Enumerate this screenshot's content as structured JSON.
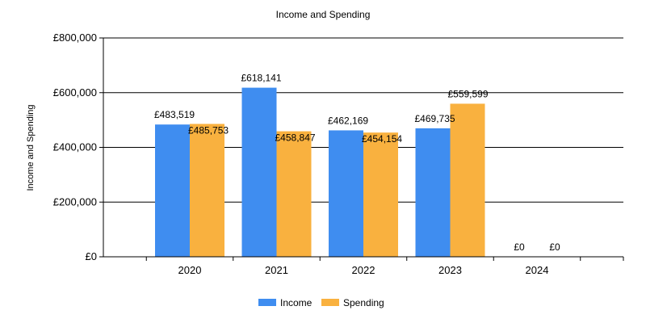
{
  "chart_data": {
    "type": "bar",
    "title": "Income and Spending",
    "xlabel": "",
    "ylabel": "Income and Spending",
    "categories": [
      "2020",
      "2021",
      "2022",
      "2023",
      "2024"
    ],
    "series": [
      {
        "name": "Income",
        "color": "#3f8df0",
        "values": [
          483519,
          618141,
          462169,
          469735,
          0
        ],
        "labels": [
          "£483,519",
          "£618,141",
          "£462,169",
          "£469,735",
          "£0"
        ]
      },
      {
        "name": "Spending",
        "color": "#f9b13f",
        "values": [
          485753,
          458847,
          454154,
          559599,
          0
        ],
        "labels": [
          "£485,753",
          "£458,847",
          "£454,154",
          "£559,599",
          "£0"
        ]
      }
    ],
    "ylim": [
      0,
      800000
    ],
    "yticks": [
      0,
      200000,
      400000,
      600000,
      800000
    ],
    "ytick_labels": [
      "£0",
      "£200,000",
      "£400,000",
      "£600,000",
      "£800,000"
    ],
    "grid": true,
    "legend_position": "bottom"
  }
}
